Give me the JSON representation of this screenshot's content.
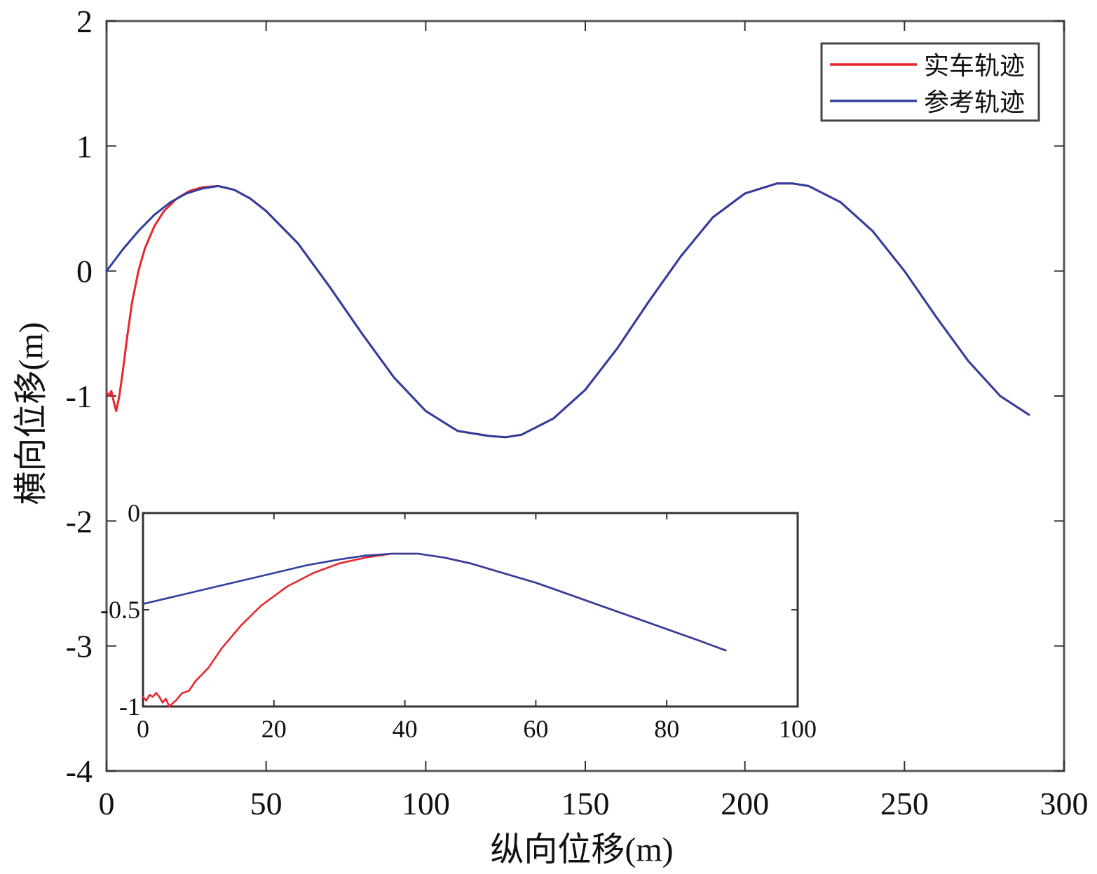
{
  "chart_data": [
    {
      "id": "main",
      "type": "line",
      "xlabel": "纵向位移(m)",
      "ylabel": "横向位移(m)",
      "xlim": [
        0,
        300
      ],
      "ylim": [
        -4,
        2
      ],
      "xticks": [
        0,
        50,
        100,
        150,
        200,
        250,
        300
      ],
      "yticks": [
        -4,
        -3,
        -2,
        -1,
        0,
        1,
        2
      ],
      "xtick_labels": [
        "0",
        "50",
        "100",
        "150",
        "200",
        "250",
        "300"
      ],
      "ytick_labels": [
        "-4",
        "-3",
        "-2",
        "-1",
        "0",
        "1",
        "2"
      ],
      "grid": false,
      "legend_position": "top-right",
      "series": [
        {
          "name": "实车轨迹",
          "color": "#e8262b",
          "x": [
            0,
            0.8,
            1.5,
            2.3,
            3,
            4,
            5,
            6.5,
            8,
            10,
            12,
            15,
            18,
            22,
            26,
            30,
            35,
            40,
            45,
            50,
            60,
            70,
            80,
            90,
            100,
            110,
            120,
            125,
            130,
            140,
            150,
            160,
            170,
            180,
            190,
            200,
            210,
            215,
            220,
            230,
            240,
            250,
            260,
            270,
            280,
            289
          ],
          "y": [
            -0.97,
            -1.0,
            -0.96,
            -1.05,
            -1.12,
            -1.0,
            -0.82,
            -0.52,
            -0.25,
            0.0,
            0.18,
            0.36,
            0.48,
            0.58,
            0.64,
            0.67,
            0.68,
            0.65,
            0.58,
            0.48,
            0.22,
            -0.13,
            -0.5,
            -0.85,
            -1.12,
            -1.28,
            -1.32,
            -1.33,
            -1.31,
            -1.18,
            -0.95,
            -0.62,
            -0.24,
            0.12,
            0.43,
            0.62,
            0.7,
            0.7,
            0.68,
            0.55,
            0.32,
            -0.0,
            -0.37,
            -0.72,
            -1.0,
            -1.15
          ]
        },
        {
          "name": "参考轨迹",
          "color": "#2e3fa0",
          "x": [
            0,
            5,
            10,
            15,
            20,
            25,
            30,
            35,
            40,
            45,
            50,
            60,
            70,
            80,
            90,
            100,
            110,
            120,
            125,
            130,
            140,
            150,
            160,
            170,
            180,
            190,
            200,
            210,
            215,
            220,
            230,
            240,
            250,
            260,
            270,
            280,
            289
          ],
          "y": [
            0.0,
            0.17,
            0.32,
            0.45,
            0.55,
            0.62,
            0.66,
            0.68,
            0.65,
            0.58,
            0.48,
            0.22,
            -0.13,
            -0.5,
            -0.85,
            -1.12,
            -1.28,
            -1.32,
            -1.33,
            -1.31,
            -1.18,
            -0.95,
            -0.62,
            -0.24,
            0.12,
            0.43,
            0.62,
            0.7,
            0.7,
            0.68,
            0.55,
            0.32,
            -0.0,
            -0.37,
            -0.72,
            -1.0,
            -1.15
          ]
        }
      ]
    },
    {
      "id": "inset",
      "type": "line",
      "xlabel": "",
      "ylabel": "",
      "xlim": [
        0,
        100
      ],
      "ylim": [
        -1,
        0
      ],
      "xticks": [
        0,
        20,
        40,
        60,
        80,
        100
      ],
      "yticks": [
        -1,
        -0.5,
        0
      ],
      "xtick_labels": [
        "0",
        "20",
        "40",
        "60",
        "80",
        "100"
      ],
      "ytick_labels": [
        "-1",
        "-0.5",
        "0"
      ],
      "grid": false,
      "series": [
        {
          "color": "#e8262b",
          "x": [
            0,
            0.5,
            1,
            1.5,
            2,
            2.5,
            3,
            3.5,
            4,
            5,
            6,
            7,
            8,
            10,
            12,
            15,
            18,
            22,
            26,
            30,
            34,
            38,
            42,
            46,
            50,
            55,
            60,
            65,
            70,
            75,
            80,
            85,
            89
          ],
          "y": [
            -0.95,
            -0.97,
            -0.94,
            -0.95,
            -0.93,
            -0.95,
            -0.98,
            -0.96,
            -1.0,
            -0.97,
            -0.93,
            -0.92,
            -0.87,
            -0.8,
            -0.7,
            -0.58,
            -0.48,
            -0.38,
            -0.31,
            -0.26,
            -0.23,
            -0.21,
            -0.21,
            -0.23,
            -0.26,
            -0.31,
            -0.36,
            -0.42,
            -0.48,
            -0.54,
            -0.6,
            -0.66,
            -0.71
          ]
        },
        {
          "color": "#2e3fa0",
          "x": [
            0,
            5,
            10,
            15,
            20,
            25,
            30,
            34,
            38,
            42,
            46,
            50,
            55,
            60,
            65,
            70,
            75,
            80,
            85,
            89
          ],
          "y": [
            -0.47,
            -0.43,
            -0.39,
            -0.35,
            -0.31,
            -0.27,
            -0.24,
            -0.22,
            -0.21,
            -0.21,
            -0.23,
            -0.26,
            -0.31,
            -0.36,
            -0.42,
            -0.48,
            -0.54,
            -0.6,
            -0.66,
            -0.71
          ]
        }
      ]
    }
  ]
}
